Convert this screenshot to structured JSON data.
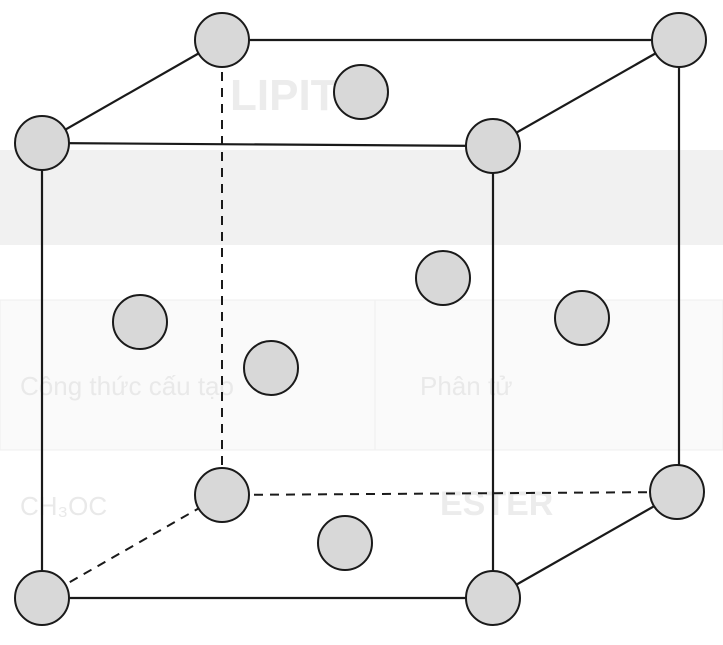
{
  "figure": {
    "structure": "face-centered-cubic-unit-cell",
    "corner_atom_count": 8,
    "face_center_atom_count": 6
  },
  "background_bleed": {
    "line_1": "Công thức cấu tạo",
    "line_2": "Phân tử",
    "line_3": "CH₃OC",
    "line_4": "ESTER",
    "line_5": "LIPIT"
  },
  "colors": {
    "atom_fill": "#d8d8d8",
    "outline": "#1a1a1a",
    "background": "#ffffff"
  }
}
